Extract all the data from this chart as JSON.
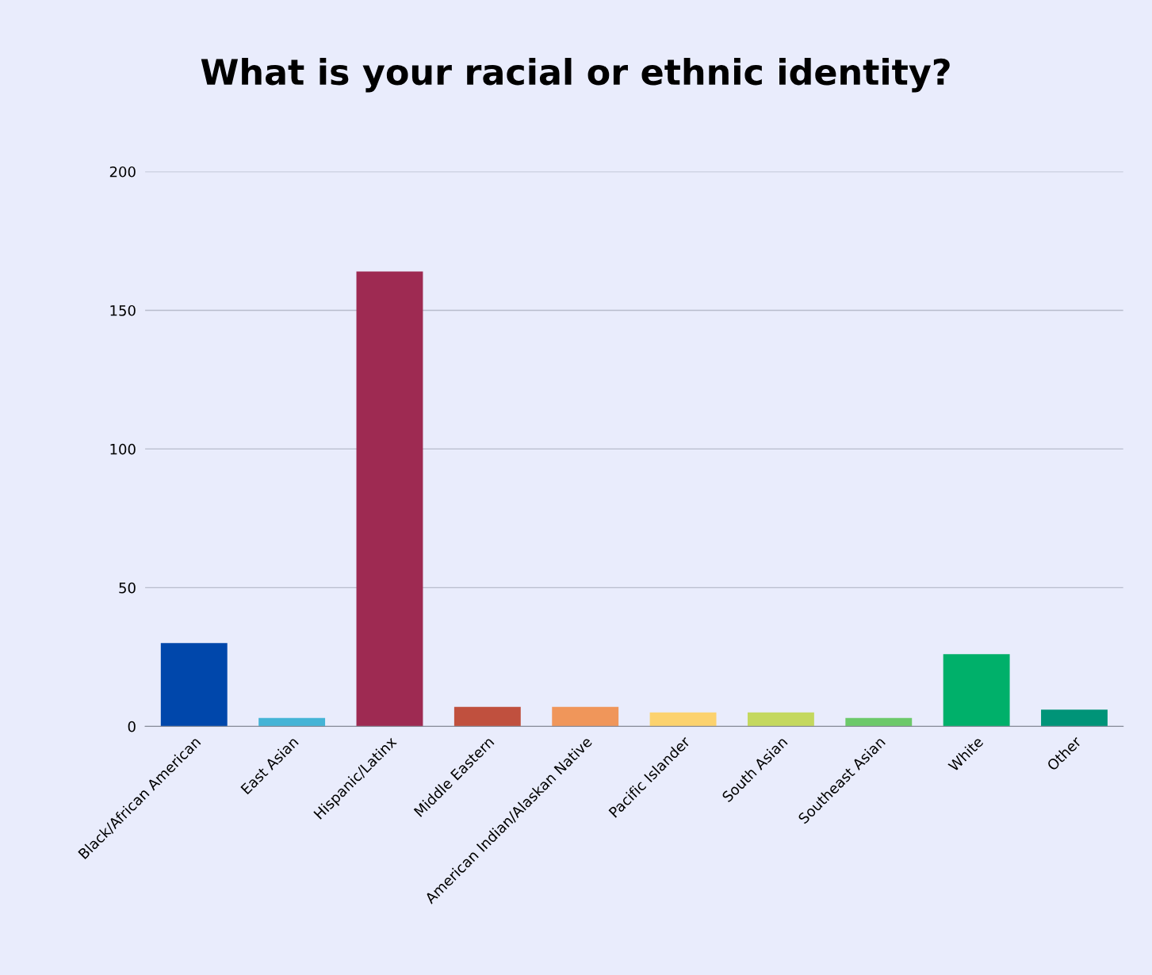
{
  "chart_data": {
    "type": "bar",
    "title": "What is your racial or ethnic identity?",
    "categories": [
      "Black/African American",
      "East Asian",
      "Hispanic/Latinx",
      "Middle Eastern",
      "American Indian/Alaskan Native",
      "Pacific Islander",
      "South Asian",
      "Southeast Asian",
      "White",
      "Other"
    ],
    "values": [
      30,
      3,
      164,
      7,
      7,
      5,
      5,
      3,
      26,
      6
    ],
    "colors": [
      "#0047ab",
      "#45b4d6",
      "#9e2a52",
      "#c0503e",
      "#f0965a",
      "#fcd26e",
      "#c4d85e",
      "#6cc96a",
      "#00b06a",
      "#009478"
    ],
    "ylim": [
      0,
      200
    ],
    "yticks": [
      0,
      50,
      100,
      150,
      200
    ],
    "grid": "y",
    "legend": false
  }
}
